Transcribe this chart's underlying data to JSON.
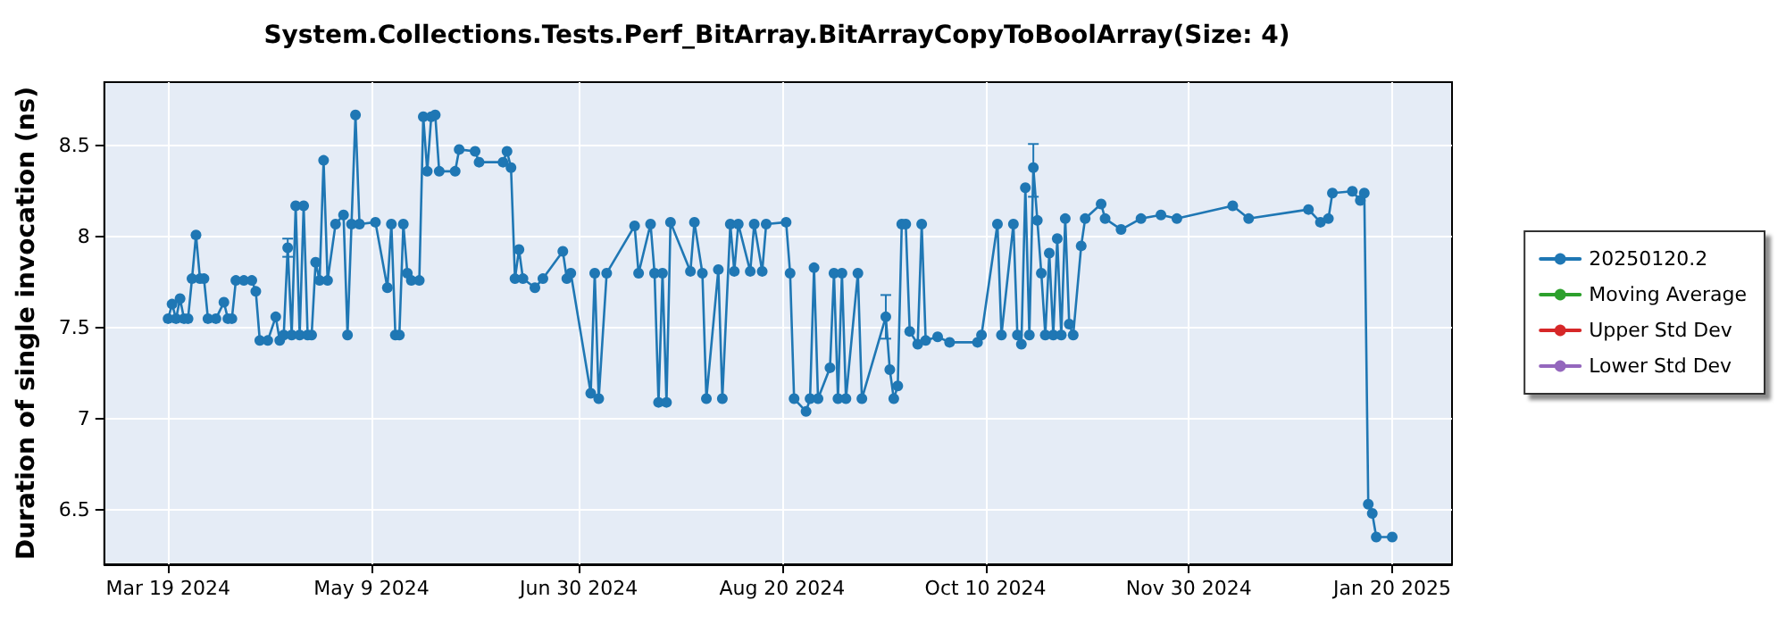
{
  "chart_data": {
    "type": "line",
    "title": "System.Collections.Tests.Perf_BitArray.BitArrayCopyToBoolArray(Size: 4)",
    "ylabel": "Duration of single invocation (ns)",
    "xlim": [
      "2024-03-03",
      "2025-02-04"
    ],
    "xticks": [
      {
        "value": "2024-03-19",
        "label": "Mar 19 2024"
      },
      {
        "value": "2024-05-09",
        "label": "May 9 2024"
      },
      {
        "value": "2024-06-30",
        "label": "Jun 30 2024"
      },
      {
        "value": "2024-08-20",
        "label": "Aug 20 2024"
      },
      {
        "value": "2024-10-10",
        "label": "Oct 10 2024"
      },
      {
        "value": "2024-11-30",
        "label": "Nov 30 2024"
      },
      {
        "value": "2025-01-20",
        "label": "Jan 20 2025"
      }
    ],
    "ylim": [
      6.2,
      8.85
    ],
    "yticks": [
      6.5,
      7,
      7.5,
      8,
      8.5
    ],
    "grid": true,
    "legend": "right",
    "marker": "circle",
    "line_style": "solid",
    "series": [
      {
        "name": "20250120.2",
        "color": "#1f77b4",
        "x": [
          "2024-03-19",
          "2024-03-20",
          "2024-03-21",
          "2024-03-22",
          "2024-03-23",
          "2024-03-24",
          "2024-03-25",
          "2024-03-26",
          "2024-03-27",
          "2024-03-28",
          "2024-03-29",
          "2024-03-31",
          "2024-04-02",
          "2024-04-03",
          "2024-04-04",
          "2024-04-05",
          "2024-04-07",
          "2024-04-09",
          "2024-04-10",
          "2024-04-11",
          "2024-04-13",
          "2024-04-15",
          "2024-04-16",
          "2024-04-17",
          "2024-04-18",
          "2024-04-19",
          "2024-04-20",
          "2024-04-21",
          "2024-04-22",
          "2024-04-23",
          "2024-04-24",
          "2024-04-25",
          "2024-04-26",
          "2024-04-27",
          "2024-04-28",
          "2024-04-30",
          "2024-05-02",
          "2024-05-03",
          "2024-05-04",
          "2024-05-05",
          "2024-05-06",
          "2024-05-10",
          "2024-05-13",
          "2024-05-14",
          "2024-05-15",
          "2024-05-16",
          "2024-05-17",
          "2024-05-18",
          "2024-05-19",
          "2024-05-21",
          "2024-05-22",
          "2024-05-23",
          "2024-05-24",
          "2024-05-25",
          "2024-05-26",
          "2024-05-30",
          "2024-05-31",
          "2024-06-04",
          "2024-06-05",
          "2024-06-11",
          "2024-06-12",
          "2024-06-13",
          "2024-06-14",
          "2024-06-15",
          "2024-06-16",
          "2024-06-19",
          "2024-06-21",
          "2024-06-26",
          "2024-06-27",
          "2024-06-28",
          "2024-07-03",
          "2024-07-04",
          "2024-07-05",
          "2024-07-07",
          "2024-07-14",
          "2024-07-15",
          "2024-07-18",
          "2024-07-19",
          "2024-07-20",
          "2024-07-21",
          "2024-07-22",
          "2024-07-23",
          "2024-07-28",
          "2024-07-29",
          "2024-07-31",
          "2024-08-01",
          "2024-08-04",
          "2024-08-05",
          "2024-08-07",
          "2024-08-08",
          "2024-08-09",
          "2024-08-12",
          "2024-08-13",
          "2024-08-15",
          "2024-08-16",
          "2024-08-21",
          "2024-08-22",
          "2024-08-23",
          "2024-08-26",
          "2024-08-27",
          "2024-08-28",
          "2024-08-29",
          "2024-09-01",
          "2024-09-02",
          "2024-09-03",
          "2024-09-04",
          "2024-09-05",
          "2024-09-08",
          "2024-09-09",
          "2024-09-15",
          "2024-09-16",
          "2024-09-17",
          "2024-09-18",
          "2024-09-19",
          "2024-09-20",
          "2024-09-21",
          "2024-09-23",
          "2024-09-24",
          "2024-09-25",
          "2024-09-28",
          "2024-10-01",
          "2024-10-08",
          "2024-10-09",
          "2024-10-13",
          "2024-10-14",
          "2024-10-17",
          "2024-10-18",
          "2024-10-19",
          "2024-10-20",
          "2024-10-21",
          "2024-10-22",
          "2024-10-23",
          "2024-10-24",
          "2024-10-25",
          "2024-10-26",
          "2024-10-27",
          "2024-10-28",
          "2024-10-29",
          "2024-10-30",
          "2024-10-31",
          "2024-11-01",
          "2024-11-03",
          "2024-11-04",
          "2024-11-08",
          "2024-11-09",
          "2024-11-13",
          "2024-11-18",
          "2024-11-23",
          "2024-11-27",
          "2024-12-11",
          "2024-12-15",
          "2024-12-30",
          "2025-01-02",
          "2025-01-04",
          "2025-01-05",
          "2025-01-10",
          "2025-01-12",
          "2025-01-13",
          "2025-01-14",
          "2025-01-15",
          "2025-01-16",
          "2025-01-20"
        ],
        "values": [
          7.55,
          7.63,
          7.55,
          7.66,
          7.55,
          7.55,
          7.77,
          8.01,
          7.77,
          7.77,
          7.55,
          7.55,
          7.64,
          7.55,
          7.55,
          7.76,
          7.76,
          7.76,
          7.7,
          7.43,
          7.43,
          7.56,
          7.43,
          7.46,
          7.94,
          7.46,
          8.17,
          7.46,
          8.17,
          7.46,
          7.46,
          7.86,
          7.76,
          8.42,
          7.76,
          8.07,
          8.12,
          7.46,
          8.07,
          8.67,
          8.07,
          8.08,
          7.72,
          8.07,
          7.46,
          7.46,
          8.07,
          7.8,
          7.76,
          7.76,
          8.66,
          8.36,
          8.66,
          8.67,
          8.36,
          8.36,
          8.48,
          8.47,
          8.41,
          8.41,
          8.47,
          8.38,
          7.77,
          7.93,
          7.77,
          7.72,
          7.77,
          7.92,
          7.77,
          7.8,
          7.14,
          7.8,
          7.11,
          7.8,
          8.06,
          7.8,
          8.07,
          7.8,
          7.09,
          7.8,
          7.09,
          8.08,
          7.81,
          8.08,
          7.8,
          7.11,
          7.82,
          7.11,
          8.07,
          7.81,
          8.07,
          7.81,
          8.07,
          7.81,
          8.07,
          8.08,
          7.8,
          7.11,
          7.04,
          7.11,
          7.83,
          7.11,
          7.28,
          7.8,
          7.11,
          7.8,
          7.11,
          7.8,
          7.11,
          7.56,
          7.27,
          7.11,
          7.18,
          8.07,
          8.07,
          7.48,
          7.41,
          8.07,
          7.43,
          7.45,
          7.42,
          7.42,
          7.46,
          8.07,
          7.46,
          8.07,
          7.46,
          7.41,
          8.27,
          7.46,
          8.38,
          8.09,
          7.8,
          7.46,
          7.91,
          7.46,
          7.99,
          7.46,
          8.1,
          7.52,
          7.46,
          7.95,
          8.1,
          8.18,
          8.1,
          8.04,
          8.1,
          8.12,
          8.1,
          8.17,
          8.1,
          8.15,
          8.08,
          8.1,
          8.24,
          8.25,
          8.2,
          8.24,
          6.53,
          6.48,
          6.35,
          6.35
        ],
        "errors": [
          null,
          null,
          null,
          null,
          null,
          null,
          null,
          null,
          null,
          null,
          null,
          null,
          null,
          null,
          null,
          null,
          null,
          null,
          null,
          null,
          null,
          null,
          null,
          null,
          0.05,
          null,
          null,
          null,
          null,
          null,
          null,
          null,
          null,
          null,
          null,
          null,
          null,
          null,
          null,
          null,
          null,
          null,
          null,
          null,
          null,
          null,
          null,
          null,
          null,
          null,
          null,
          null,
          null,
          null,
          null,
          null,
          null,
          null,
          null,
          null,
          null,
          null,
          null,
          null,
          null,
          null,
          null,
          null,
          null,
          null,
          null,
          null,
          null,
          null,
          null,
          null,
          null,
          null,
          null,
          null,
          null,
          null,
          null,
          null,
          null,
          null,
          null,
          null,
          null,
          null,
          null,
          null,
          null,
          null,
          null,
          null,
          null,
          null,
          null,
          null,
          null,
          null,
          null,
          null,
          null,
          null,
          null,
          null,
          null,
          [
            7.44,
            7.68
          ],
          null,
          null,
          null,
          null,
          null,
          null,
          null,
          null,
          null,
          null,
          null,
          null,
          null,
          null,
          null,
          null,
          null,
          null,
          null,
          null,
          [
            8.22,
            8.51
          ],
          null,
          null,
          null,
          null,
          null,
          null,
          null,
          null,
          null,
          null,
          null,
          null,
          null,
          null,
          null,
          null,
          null,
          null,
          null,
          null,
          null,
          null,
          null,
          null,
          null,
          null,
          null,
          null,
          null,
          null,
          null
        ]
      },
      {
        "name": "Moving Average",
        "color": "#2ca02c"
      },
      {
        "name": "Upper Std Dev",
        "color": "#d62728"
      },
      {
        "name": "Lower Std Dev",
        "color": "#9467bd"
      }
    ]
  }
}
